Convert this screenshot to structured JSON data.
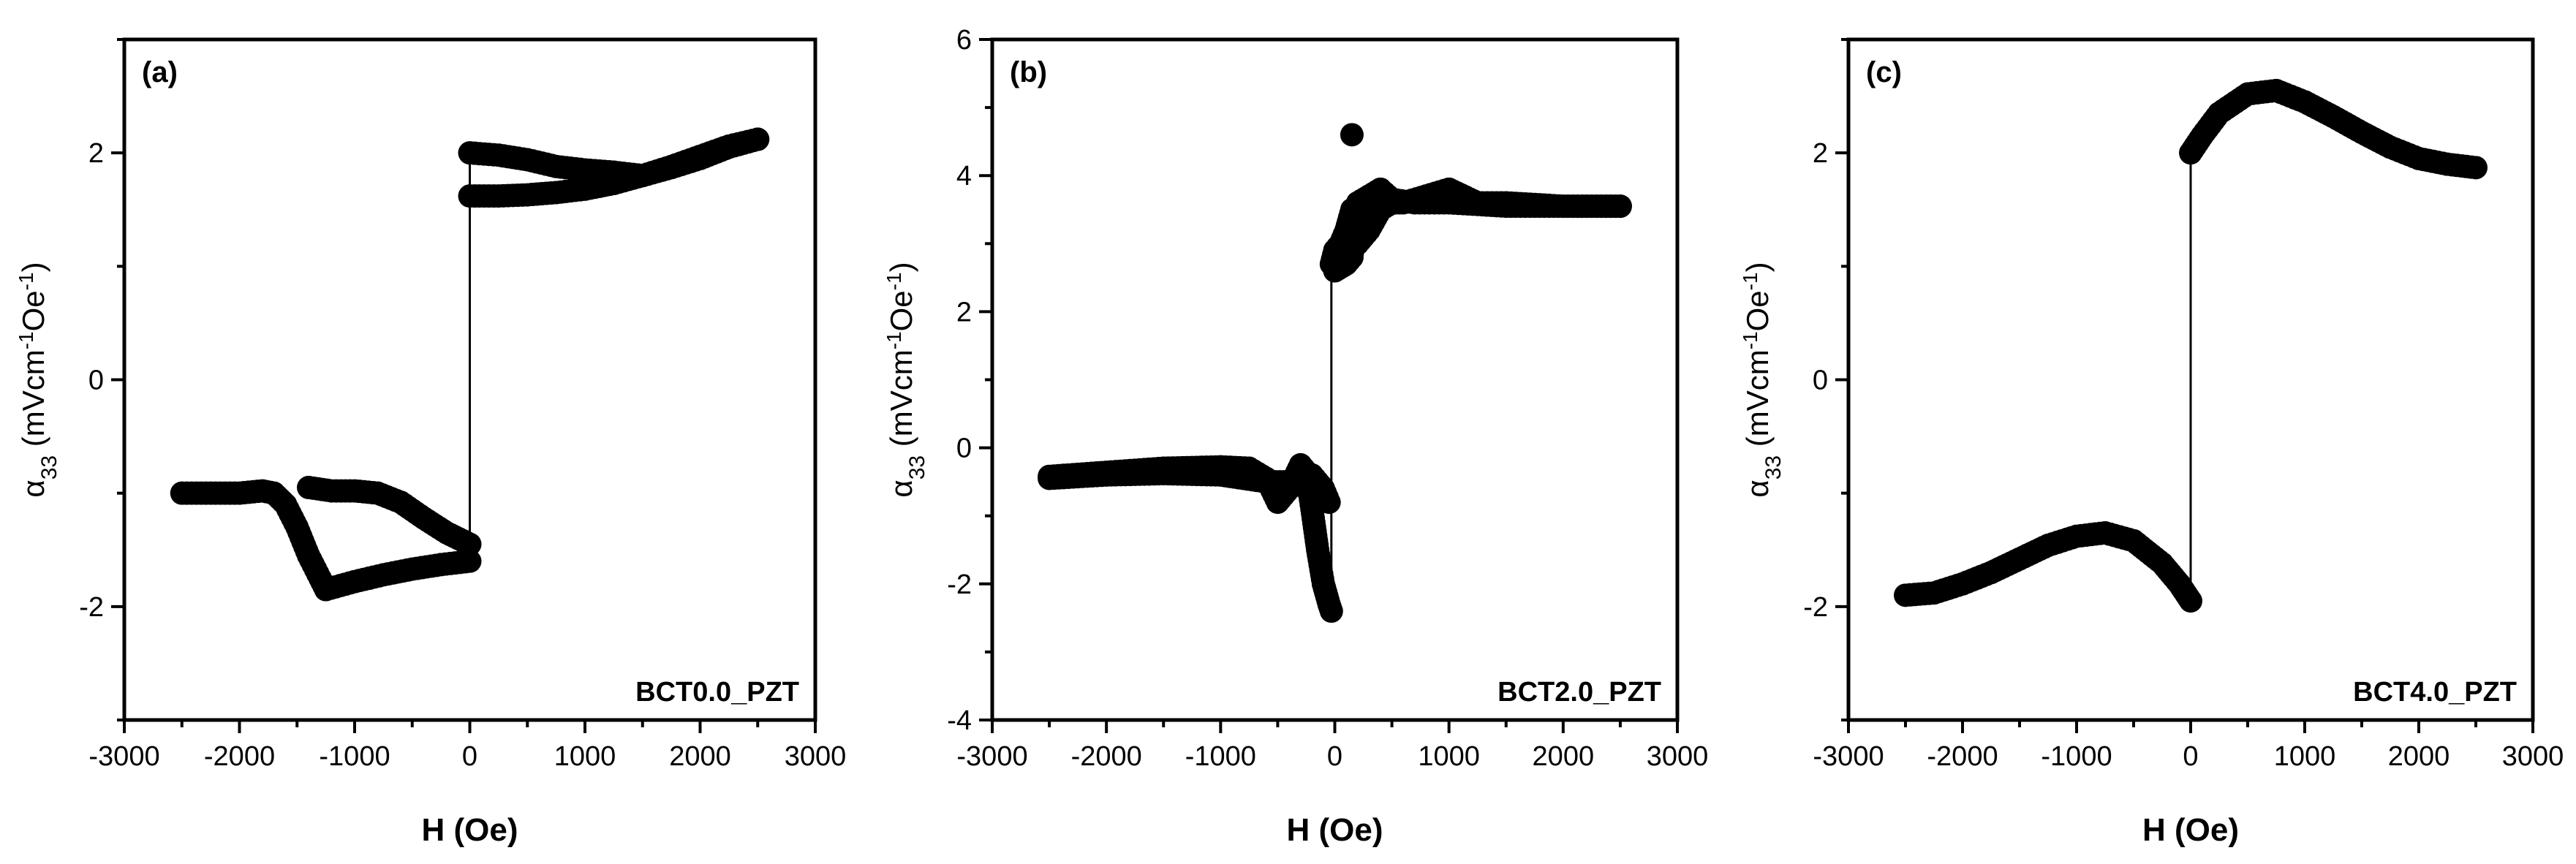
{
  "chart_data": [
    {
      "type": "scatter",
      "panel_label": "(a)",
      "annotation": "BCT0.0_PZT",
      "xlabel": "H (Oe)",
      "ylabel": {
        "alpha": "α",
        "sub": "33",
        "u1": " (mVcm",
        "sup1": "-1",
        "u2": "Oe",
        "sup2": "-1",
        "u3": ")"
      },
      "xlim": [
        -3000,
        3000
      ],
      "ylim": [
        -3,
        3
      ],
      "xticks": [
        -3000,
        -2000,
        -1000,
        0,
        1000,
        2000,
        3000
      ],
      "yticks": [
        -2,
        0,
        2
      ],
      "xtick_labels": [
        "-3000",
        "-2000",
        "-1000",
        "0",
        "1000",
        "2000",
        "3000"
      ],
      "ytick_labels": [
        "-2",
        "0",
        "2"
      ],
      "jump": {
        "x": 0,
        "y_from": -1.45,
        "y_to": 2.0
      },
      "series": [
        {
          "x": [
            -2500,
            -2250,
            -2000,
            -1800,
            -1700,
            -1600,
            -1500,
            -1400,
            -1300,
            -1250
          ],
          "y": [
            -1.0,
            -1.0,
            -1.0,
            -0.98,
            -1.0,
            -1.1,
            -1.3,
            -1.55,
            -1.75,
            -1.85
          ]
        },
        {
          "x": [
            -1250,
            -1000,
            -750,
            -500,
            -250,
            0
          ],
          "y": [
            -1.85,
            -1.78,
            -1.72,
            -1.67,
            -1.63,
            -1.6
          ]
        },
        {
          "x": [
            -1400,
            -1200,
            -1000,
            -800,
            -600,
            -400,
            -200,
            0
          ],
          "y": [
            -0.95,
            -0.98,
            -0.98,
            -1.0,
            -1.08,
            -1.22,
            -1.35,
            -1.45
          ]
        },
        {
          "x": [
            0,
            250,
            500,
            750,
            1000,
            1250,
            1500,
            1750,
            2000,
            2250,
            2500
          ],
          "y": [
            2.0,
            1.98,
            1.94,
            1.88,
            1.85,
            1.83,
            1.8,
            1.87,
            1.95,
            2.05,
            2.12
          ]
        },
        {
          "x": [
            0,
            250,
            500,
            750,
            1000,
            1250,
            1500,
            1750,
            2000,
            2250,
            2500
          ],
          "y": [
            1.62,
            1.62,
            1.63,
            1.65,
            1.68,
            1.73,
            1.8,
            1.88,
            1.97,
            2.06,
            2.12
          ]
        }
      ]
    },
    {
      "type": "scatter",
      "panel_label": "(b)",
      "annotation": "BCT2.0_PZT",
      "xlabel": "H (Oe)",
      "ylabel": {
        "alpha": "α",
        "sub": "33",
        "u1": " (mVcm",
        "sup1": "-1",
        "u2": "Oe",
        "sup2": "-1",
        "u3": ")"
      },
      "xlim": [
        -3000,
        3000
      ],
      "ylim": [
        -4,
        6
      ],
      "xticks": [
        -3000,
        -2000,
        -1000,
        0,
        1000,
        2000,
        3000
      ],
      "yticks": [
        -4,
        -2,
        0,
        2,
        4,
        6
      ],
      "xtick_labels": [
        "-3000",
        "-2000",
        "-1000",
        "0",
        "1000",
        "2000",
        "3000"
      ],
      "ytick_labels": [
        "-4",
        "-2",
        "0",
        "2",
        "4",
        "6"
      ],
      "jump": {
        "x": -30,
        "y_from": -2.4,
        "y_to": 2.7
      },
      "series": [
        {
          "x": [
            -2500,
            -2000,
            -1500,
            -1000,
            -750,
            -600,
            -500,
            -400,
            -300,
            -250,
            -200,
            -150,
            -100,
            -50,
            -30
          ],
          "y": [
            -0.42,
            -0.36,
            -0.3,
            -0.28,
            -0.3,
            -0.45,
            -0.8,
            -0.6,
            -0.25,
            -0.35,
            -0.9,
            -1.5,
            -2.0,
            -2.3,
            -2.4
          ]
        },
        {
          "x": [
            -2500,
            -2000,
            -1500,
            -1000,
            -800,
            -600,
            -400,
            -300,
            -200,
            -100,
            -50
          ],
          "y": [
            -0.45,
            -0.4,
            -0.38,
            -0.4,
            -0.45,
            -0.5,
            -0.5,
            -0.55,
            -0.4,
            -0.6,
            -0.8
          ]
        },
        {
          "x": [
            -30,
            0,
            50,
            100,
            150,
            200,
            300,
            400,
            500,
            600,
            800,
            1000,
            1250,
            1500,
            2000,
            2500
          ],
          "y": [
            2.7,
            2.9,
            3.0,
            3.2,
            3.5,
            3.0,
            3.2,
            3.5,
            3.6,
            3.6,
            3.7,
            3.8,
            3.6,
            3.6,
            3.55,
            3.55
          ]
        },
        {
          "x": [
            0,
            50,
            100,
            150,
            200,
            300,
            400,
            500,
            700,
            1000,
            1500,
            2000,
            2500
          ],
          "y": [
            2.6,
            2.65,
            2.7,
            2.8,
            3.6,
            3.7,
            3.8,
            3.65,
            3.6,
            3.6,
            3.55,
            3.55,
            3.55
          ]
        },
        {
          "x": [
            150
          ],
          "y": [
            4.6
          ]
        }
      ]
    },
    {
      "type": "scatter",
      "panel_label": "(c)",
      "annotation": "BCT4.0_PZT",
      "xlabel": "H (Oe)",
      "ylabel": {
        "alpha": "α",
        "sub": "33",
        "u1": " (mVcm",
        "sup1": "-1",
        "u2": "Oe",
        "sup2": "-1",
        "u3": ")"
      },
      "xlim": [
        -3000,
        3000
      ],
      "ylim": [
        -3,
        3
      ],
      "xticks": [
        -3000,
        -2000,
        -1000,
        0,
        1000,
        2000,
        3000
      ],
      "yticks": [
        -2,
        0,
        2
      ],
      "xtick_labels": [
        "-3000",
        "-2000",
        "-1000",
        "0",
        "1000",
        "2000",
        "3000"
      ],
      "ytick_labels": [
        "-2",
        "0",
        "2"
      ],
      "jump": {
        "x": 0,
        "y_from": -1.95,
        "y_to": 2.0
      },
      "series": [
        {
          "x": [
            -2500,
            -2250,
            -2000,
            -1750,
            -1500,
            -1250,
            -1000,
            -750,
            -500,
            -250,
            -100,
            0
          ],
          "y": [
            -1.9,
            -1.88,
            -1.8,
            -1.7,
            -1.58,
            -1.46,
            -1.38,
            -1.35,
            -1.42,
            -1.62,
            -1.8,
            -1.95
          ]
        },
        {
          "x": [
            0,
            100,
            250,
            500,
            750,
            1000,
            1250,
            1500,
            1750,
            2000,
            2250,
            2500
          ],
          "y": [
            2.0,
            2.15,
            2.35,
            2.52,
            2.55,
            2.45,
            2.32,
            2.18,
            2.05,
            1.95,
            1.9,
            1.87
          ]
        }
      ]
    }
  ]
}
